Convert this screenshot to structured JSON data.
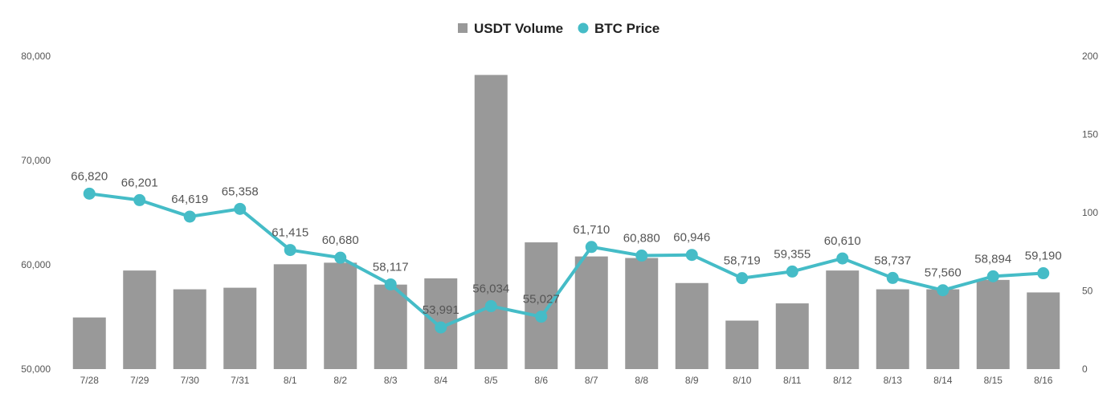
{
  "chart_data": {
    "type": "bar",
    "categories": [
      "7/28",
      "7/29",
      "7/30",
      "7/31",
      "8/1",
      "8/2",
      "8/3",
      "8/4",
      "8/5",
      "8/6",
      "8/7",
      "8/8",
      "8/9",
      "8/10",
      "8/11",
      "8/12",
      "8/13",
      "8/14",
      "8/15",
      "8/16"
    ],
    "legend": {
      "position": "top-center",
      "items": [
        {
          "label": "USDT Volume",
          "marker": "square",
          "color": "#999999"
        },
        {
          "label": "BTC Price",
          "marker": "circle",
          "color": "#45bcc7"
        }
      ]
    },
    "series": [
      {
        "name": "USDT Volume",
        "type": "bar",
        "axis": "right",
        "color": "#999999",
        "values": [
          33,
          63,
          51,
          52,
          67,
          68,
          54,
          58,
          188,
          81,
          72,
          71,
          55,
          31,
          42,
          63,
          51,
          51,
          57,
          49
        ]
      },
      {
        "name": "BTC Price",
        "type": "line",
        "axis": "left",
        "color": "#45bcc7",
        "values": [
          66820,
          66201,
          64619,
          65358,
          61415,
          60680,
          58117,
          53991,
          56034,
          55027,
          61710,
          60880,
          60946,
          58719,
          59355,
          60610,
          58737,
          57560,
          58894,
          59190
        ],
        "labels": [
          "66,820",
          "66,201",
          "64,619",
          "65,358",
          "61,415",
          "60,680",
          "58,117",
          "53,991",
          "56,034",
          "55,027",
          "61,710",
          "60,880",
          "60,946",
          "58,719",
          "59,355",
          "60,610",
          "58,737",
          "57,560",
          "58,894",
          "59,190"
        ]
      }
    ],
    "y_left": {
      "min": 50000,
      "max": 80000,
      "ticks": [
        "50,000",
        "60,000",
        "70,000",
        "80,000"
      ],
      "tick_values": [
        50000,
        60000,
        70000,
        80000
      ]
    },
    "y_right": {
      "min": 0,
      "max": 200,
      "ticks": [
        "0",
        "50",
        "100",
        "150",
        "200"
      ],
      "tick_values": [
        0,
        50,
        100,
        150,
        200
      ]
    },
    "grid": false
  }
}
